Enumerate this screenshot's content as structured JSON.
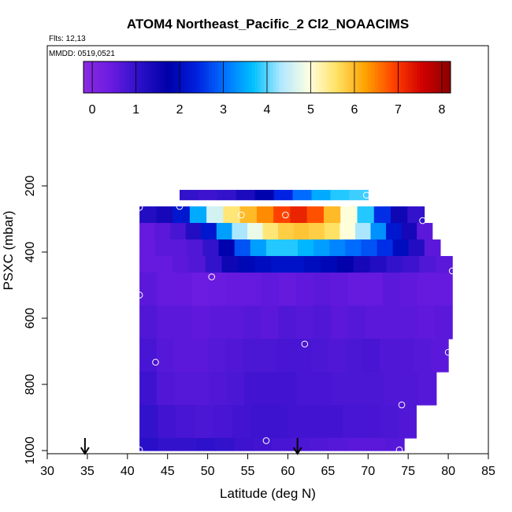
{
  "chart_data": {
    "type": "heatmap",
    "title": "ATOM4 Northeast_Pacific_2 Cl2_NOAACIMS",
    "flights_label": "Flts: 12,13",
    "date_label": "MMDD: 0519,0521",
    "xlabel": "Latitude (deg N)",
    "ylabel": "PSXC (mbar)",
    "xlim": [
      30,
      85
    ],
    "ylim": [
      1000,
      50
    ],
    "y_reversed": true,
    "x_ticks": [
      "30",
      "35",
      "40",
      "45",
      "50",
      "55",
      "60",
      "65",
      "70",
      "75",
      "80",
      "85"
    ],
    "y_ticks": [
      "200",
      "400",
      "600",
      "800",
      "1000"
    ],
    "colorbar": {
      "range": [
        -0.2,
        8.2
      ],
      "tick_labels": [
        "0",
        "1",
        "2",
        "3",
        "4",
        "5",
        "6",
        "7",
        "8"
      ],
      "colors": [
        "#8a2be2",
        "#6a1be0",
        "#2a10c8",
        "#0000a8",
        "#0020e0",
        "#0070ff",
        "#00c0ff",
        "#b0e8ff",
        "#ffffe0",
        "#ffe060",
        "#ffa000",
        "#ff4000",
        "#d00000",
        "#8b0000"
      ]
    },
    "cells": [
      {
        "lat": [
          46.5,
          70.0
        ],
        "p": [
          212,
          242
        ],
        "values": [
          1.0,
          0.9,
          1.0,
          1.3,
          1.8,
          2.4,
          3.0,
          3.5,
          3.8,
          3.9
        ]
      },
      {
        "lat": [
          41.5,
          77.0
        ],
        "p": [
          262,
          312
        ],
        "values": [
          1.2,
          1.4,
          2.2,
          3.5,
          4.6,
          5.5,
          6.0,
          6.4,
          6.9,
          7.2,
          6.8,
          6.0,
          5.0,
          3.8,
          2.5,
          1.5,
          1.0
        ]
      },
      {
        "lat": [
          41.5,
          78.0
        ],
        "p": [
          312,
          362
        ],
        "values": [
          0.5,
          0.6,
          0.8,
          1.2,
          2.2,
          3.4,
          4.3,
          4.8,
          5.5,
          5.8,
          5.9,
          5.8,
          5.6,
          5.0,
          4.3,
          3.3,
          2.2,
          1.4,
          0.6
        ]
      },
      {
        "lat": [
          41.5,
          79.0
        ],
        "p": [
          362,
          412
        ],
        "values": [
          0.5,
          0.6,
          0.6,
          0.7,
          1.0,
          1.8,
          2.8,
          3.4,
          3.8,
          3.8,
          3.6,
          3.4,
          3.2,
          3.0,
          2.8,
          2.5,
          2.0,
          1.2,
          0.6
        ]
      },
      {
        "lat": [
          41.5,
          80.5
        ],
        "p": [
          412,
          462
        ],
        "values": [
          0.5,
          0.5,
          0.6,
          0.7,
          1.0,
          1.5,
          1.9,
          2.0,
          2.1,
          2.1,
          2.0,
          1.9,
          1.7,
          1.4,
          1.2,
          1.0,
          0.9,
          0.7,
          0.6
        ]
      },
      {
        "lat": [
          41.5,
          80.5
        ],
        "p": [
          462,
          562
        ],
        "values": [
          0.6,
          0.5,
          0.5,
          0.4,
          0.45,
          0.5,
          0.5,
          0.55,
          0.5,
          0.55,
          0.6,
          0.55,
          0.5,
          0.5,
          0.6,
          0.55,
          0.5,
          0.5
        ]
      },
      {
        "lat": [
          41.5,
          80.5
        ],
        "p": [
          562,
          662
        ],
        "values": [
          0.7,
          0.6,
          0.6,
          0.55,
          0.6,
          0.6,
          0.65,
          0.6,
          0.7,
          0.65,
          0.7,
          0.6,
          0.65,
          0.6,
          0.6,
          0.6,
          0.55,
          0.6
        ]
      },
      {
        "lat": [
          41.5,
          80.0
        ],
        "p": [
          662,
          762
        ],
        "values": [
          0.8,
          0.65,
          0.6,
          0.6,
          0.65,
          0.7,
          0.75,
          0.75,
          0.8,
          0.8,
          0.75,
          0.7,
          0.75,
          0.8,
          0.7,
          0.7,
          0.65,
          0.6
        ]
      },
      {
        "lat": [
          41.5,
          78.5
        ],
        "p": [
          762,
          862
        ],
        "values": [
          0.9,
          0.7,
          0.65,
          0.65,
          0.7,
          0.75,
          0.85,
          0.85,
          0.85,
          0.8,
          0.8,
          0.75,
          0.75,
          0.75,
          0.7,
          0.7,
          0.65
        ]
      },
      {
        "lat": [
          41.5,
          76.0
        ],
        "p": [
          862,
          962
        ],
        "values": [
          1.0,
          0.85,
          0.8,
          0.75,
          0.8,
          0.85,
          0.9,
          0.9,
          0.85,
          0.85,
          0.85,
          0.8,
          0.8,
          0.75,
          0.7
        ]
      },
      {
        "lat": [
          41.5,
          74.5
        ],
        "p": [
          962,
          1000
        ],
        "values": [
          1.1,
          1.0,
          1.0,
          1.05,
          1.0,
          0.9,
          0.85,
          0.8,
          0.75,
          0.7,
          0.65,
          0.6,
          0.6,
          0.65
        ]
      }
    ],
    "points": [
      {
        "lat": 41.5,
        "p": 265
      },
      {
        "lat": 46.5,
        "p": 262
      },
      {
        "lat": 54.2,
        "p": 288
      },
      {
        "lat": 59.7,
        "p": 288
      },
      {
        "lat": 69.8,
        "p": 228
      },
      {
        "lat": 76.8,
        "p": 305
      },
      {
        "lat": 80.5,
        "p": 457
      },
      {
        "lat": 50.5,
        "p": 475
      },
      {
        "lat": 41.5,
        "p": 530
      },
      {
        "lat": 62.1,
        "p": 678
      },
      {
        "lat": 80.0,
        "p": 703
      },
      {
        "lat": 43.5,
        "p": 733
      },
      {
        "lat": 74.2,
        "p": 862
      },
      {
        "lat": 57.3,
        "p": 970
      },
      {
        "lat": 41.5,
        "p": 998
      },
      {
        "lat": 73.9,
        "p": 998
      }
    ],
    "arrows_lat": [
      34.7,
      61.2
    ]
  }
}
